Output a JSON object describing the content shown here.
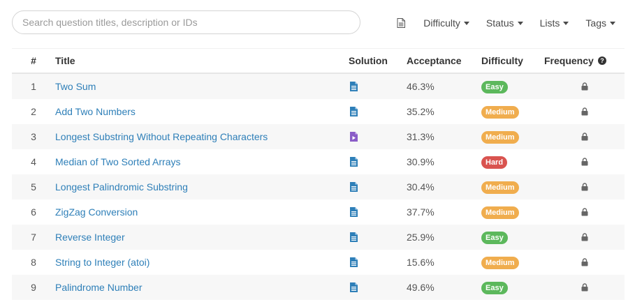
{
  "search": {
    "placeholder": "Search question titles, description or IDs",
    "value": ""
  },
  "toolbar": {
    "icon": "document-icon",
    "filters": [
      {
        "label": "Difficulty"
      },
      {
        "label": "Status"
      },
      {
        "label": "Lists"
      },
      {
        "label": "Tags"
      }
    ]
  },
  "table": {
    "headers": {
      "num": "#",
      "title": "Title",
      "solution": "Solution",
      "acceptance": "Acceptance",
      "difficulty": "Difficulty",
      "frequency": "Frequency"
    },
    "colors": {
      "easy": "#5cb85c",
      "medium": "#f0ad4e",
      "hard": "#d9534f",
      "article": "#2e7fb8",
      "video": "#8a5cc7",
      "link": "#2e7fb8"
    },
    "rows": [
      {
        "num": "1",
        "title": "Two Sum",
        "solution": "article",
        "acceptance": "46.3%",
        "difficulty": "Easy",
        "level": "easy"
      },
      {
        "num": "2",
        "title": "Add Two Numbers",
        "solution": "article",
        "acceptance": "35.2%",
        "difficulty": "Medium",
        "level": "medium"
      },
      {
        "num": "3",
        "title": "Longest Substring Without Repeating Characters",
        "solution": "video",
        "acceptance": "31.3%",
        "difficulty": "Medium",
        "level": "medium"
      },
      {
        "num": "4",
        "title": "Median of Two Sorted Arrays",
        "solution": "article",
        "acceptance": "30.9%",
        "difficulty": "Hard",
        "level": "hard"
      },
      {
        "num": "5",
        "title": "Longest Palindromic Substring",
        "solution": "article",
        "acceptance": "30.4%",
        "difficulty": "Medium",
        "level": "medium"
      },
      {
        "num": "6",
        "title": "ZigZag Conversion",
        "solution": "article",
        "acceptance": "37.7%",
        "difficulty": "Medium",
        "level": "medium"
      },
      {
        "num": "7",
        "title": "Reverse Integer",
        "solution": "article",
        "acceptance": "25.9%",
        "difficulty": "Easy",
        "level": "easy"
      },
      {
        "num": "8",
        "title": "String to Integer (atoi)",
        "solution": "article",
        "acceptance": "15.6%",
        "difficulty": "Medium",
        "level": "medium"
      },
      {
        "num": "9",
        "title": "Palindrome Number",
        "solution": "article",
        "acceptance": "49.6%",
        "difficulty": "Easy",
        "level": "easy"
      }
    ]
  }
}
